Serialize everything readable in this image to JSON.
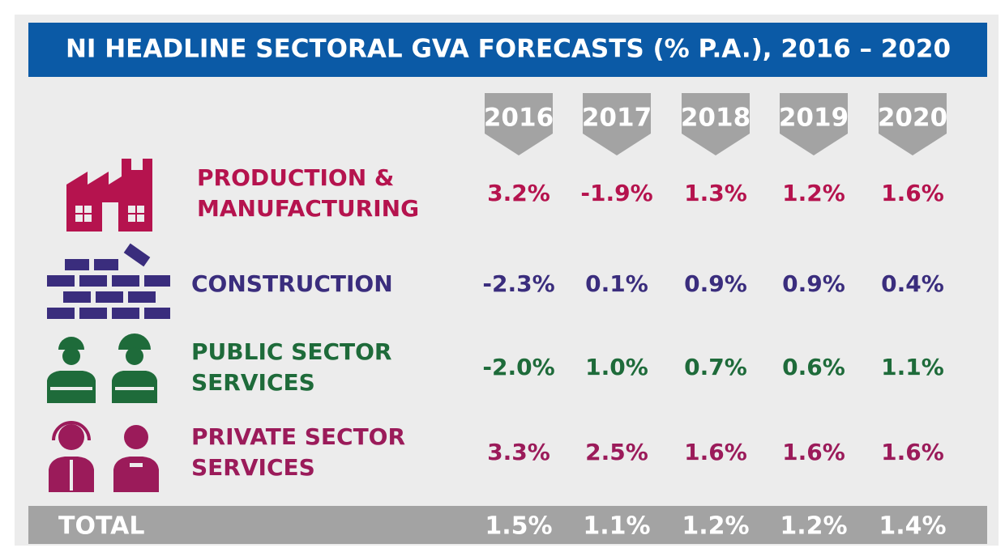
{
  "header": {
    "title": "NI HEADLINE SECTORAL GVA FORECASTS (% P.A.), 2016 – 2020"
  },
  "table": {
    "columns": [
      "2016",
      "2017",
      "2018",
      "2019",
      "2020"
    ],
    "rows": [
      {
        "label": [
          "PRODUCTION &",
          "MANUFACTURING"
        ],
        "values": [
          "3.2%",
          "-1.9%",
          "1.3%",
          "1.2%",
          "1.6%"
        ]
      },
      {
        "label": [
          "CONSTRUCTION"
        ],
        "values": [
          "-2.3%",
          "0.1%",
          "0.9%",
          "0.9%",
          "0.4%"
        ]
      },
      {
        "label": [
          "PUBLIC SECTOR",
          "SERVICES"
        ],
        "values": [
          "-2.0%",
          "1.0%",
          "0.7%",
          "0.6%",
          "1.1%"
        ]
      },
      {
        "label": [
          "PRIVATE SECTOR",
          "SERVICES"
        ],
        "values": [
          "3.3%",
          "2.5%",
          "1.6%",
          "1.6%",
          "1.6%"
        ]
      }
    ],
    "total": {
      "label": "TOTAL",
      "values": [
        "1.5%",
        "1.1%",
        "1.2%",
        "1.2%",
        "1.4%"
      ]
    }
  }
}
